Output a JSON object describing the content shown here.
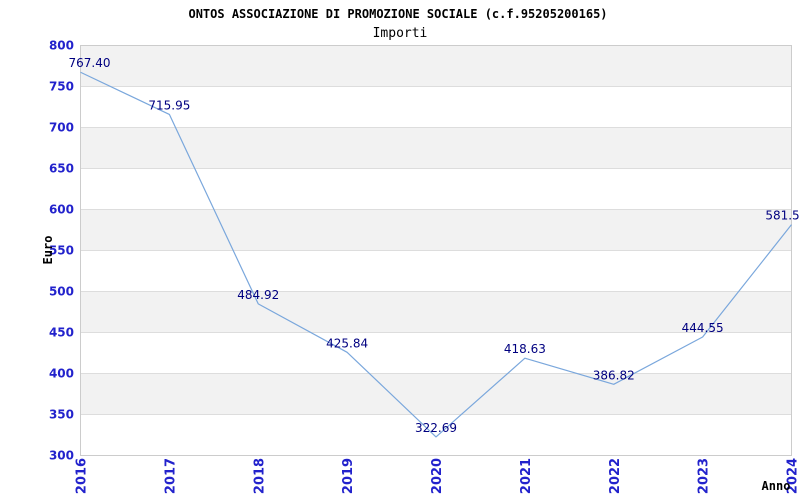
{
  "header": {
    "title": "ONTOS ASSOCIAZIONE DI PROMOZIONE SOCIALE (c.f.95205200165)",
    "subtitle": "Importi"
  },
  "chart_data": {
    "type": "line",
    "title": "ONTOS ASSOCIAZIONE DI PROMOZIONE SOCIALE (c.f.95205200165)",
    "subtitle": "Importi",
    "xlabel": "Anno",
    "ylabel": "Euro",
    "categories": [
      "2016",
      "2017",
      "2018",
      "2019",
      "2020",
      "2021",
      "2022",
      "2023",
      "2024"
    ],
    "series": [
      {
        "name": "Importi",
        "values": [
          767.4,
          715.95,
          484.92,
          425.84,
          322.69,
          418.63,
          386.82,
          444.55,
          581.5
        ]
      }
    ],
    "point_labels": [
      "767.40",
      "715.95",
      "484.92",
      "425.84",
      "322.69",
      "418.63",
      "386.82",
      "444.55",
      "581.5"
    ],
    "ylim": [
      300,
      800
    ],
    "ytick_step": 50,
    "grid": true,
    "banded_background": true,
    "legend": "none"
  },
  "colors": {
    "line": "#7aa7dc",
    "tick_label": "#2222cc",
    "data_label": "#000080",
    "band": "#f2f2f2",
    "gridline": "#dddddd",
    "plot_border": "#cccccc",
    "title": "#222222",
    "subtitle": "#666666",
    "axis_title": "#444444",
    "background": "#ffffff"
  }
}
